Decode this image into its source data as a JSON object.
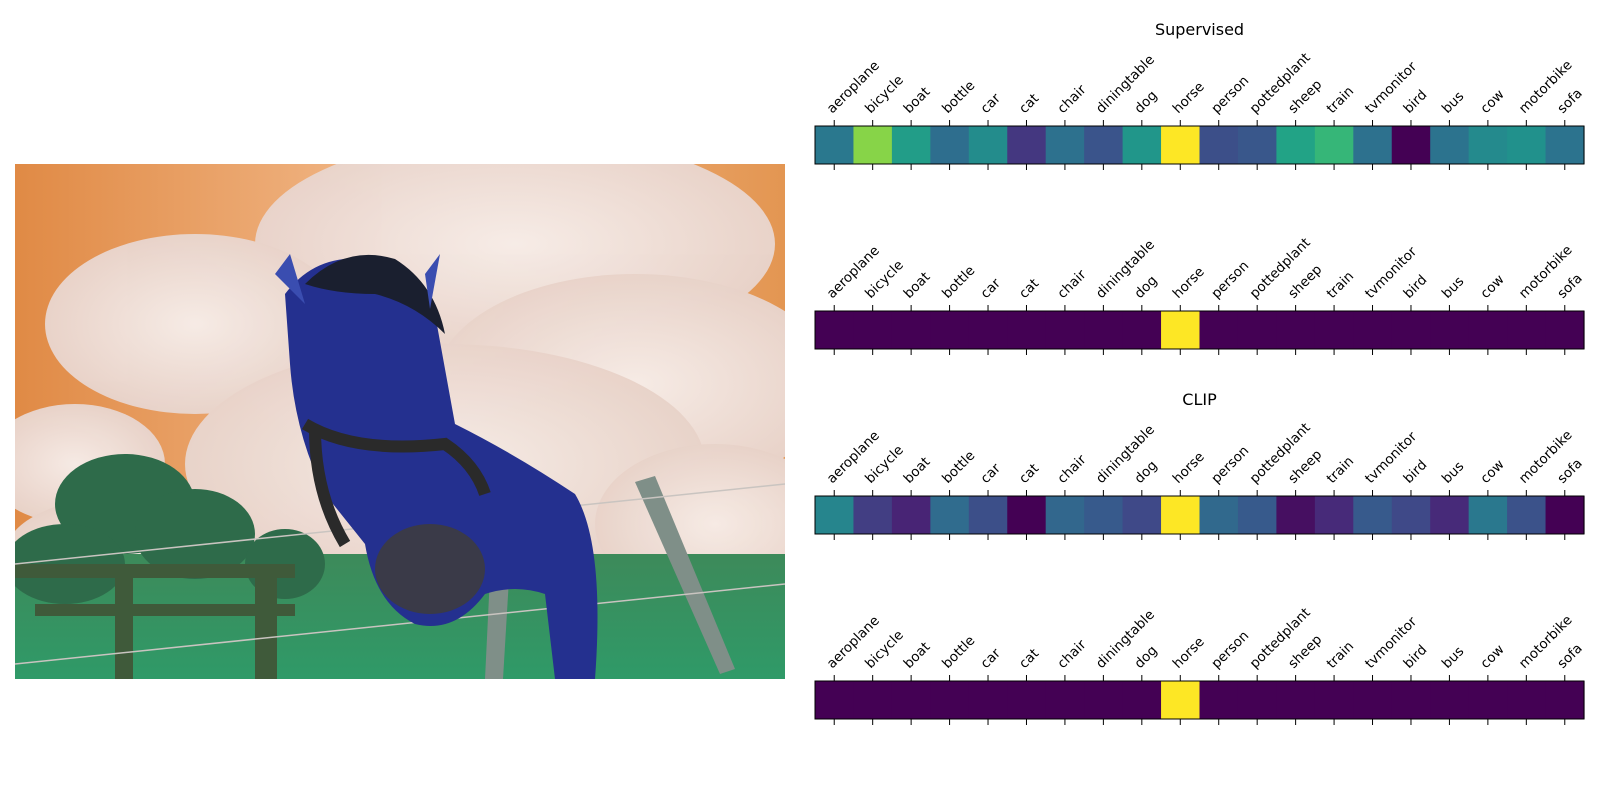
{
  "figure": {
    "image_description_icon": "horse-photo-icon"
  },
  "chart_data": [
    {
      "type": "heatmap",
      "title": "Supervised",
      "categories": [
        "aeroplane",
        "bicycle",
        "boat",
        "bottle",
        "car",
        "cat",
        "chair",
        "diningtable",
        "dog",
        "horse",
        "person",
        "pottedplant",
        "sheep",
        "train",
        "tvmonitor",
        "bird",
        "bus",
        "cow",
        "motorbike",
        "sofa"
      ],
      "values": [
        0.4,
        0.82,
        0.55,
        0.36,
        0.48,
        0.16,
        0.37,
        0.26,
        0.52,
        1.0,
        0.24,
        0.27,
        0.58,
        0.66,
        0.37,
        0.0,
        0.38,
        0.47,
        0.5,
        0.38
      ],
      "colormap": "viridis",
      "legend": "none"
    },
    {
      "type": "heatmap",
      "title": "",
      "categories": [
        "aeroplane",
        "bicycle",
        "boat",
        "bottle",
        "car",
        "cat",
        "chair",
        "diningtable",
        "dog",
        "horse",
        "person",
        "pottedplant",
        "sheep",
        "train",
        "tvmonitor",
        "bird",
        "bus",
        "cow",
        "motorbike",
        "sofa"
      ],
      "values": [
        0,
        0,
        0,
        0,
        0,
        0,
        0,
        0,
        0,
        1,
        0,
        0,
        0,
        0,
        0,
        0,
        0,
        0,
        0,
        0
      ],
      "colormap": "viridis",
      "legend": "none"
    },
    {
      "type": "heatmap",
      "title": "CLIP",
      "categories": [
        "aeroplane",
        "bicycle",
        "boat",
        "bottle",
        "car",
        "cat",
        "chair",
        "diningtable",
        "dog",
        "horse",
        "person",
        "pottedplant",
        "sheep",
        "train",
        "tvmonitor",
        "bird",
        "bus",
        "cow",
        "motorbike",
        "sofa"
      ],
      "values": [
        0.45,
        0.18,
        0.1,
        0.35,
        0.24,
        0.0,
        0.33,
        0.28,
        0.22,
        1.0,
        0.34,
        0.28,
        0.04,
        0.12,
        0.28,
        0.22,
        0.12,
        0.4,
        0.25,
        0.0
      ],
      "colormap": "viridis",
      "legend": "none"
    },
    {
      "type": "heatmap",
      "title": "",
      "categories": [
        "aeroplane",
        "bicycle",
        "boat",
        "bottle",
        "car",
        "cat",
        "chair",
        "diningtable",
        "dog",
        "horse",
        "person",
        "pottedplant",
        "sheep",
        "train",
        "tvmonitor",
        "bird",
        "bus",
        "cow",
        "motorbike",
        "sofa"
      ],
      "values": [
        0,
        0,
        0,
        0,
        0,
        0,
        0,
        0,
        0,
        1,
        0,
        0,
        0,
        0,
        0,
        0,
        0,
        0,
        0,
        0
      ],
      "colormap": "viridis",
      "legend": "none"
    }
  ]
}
